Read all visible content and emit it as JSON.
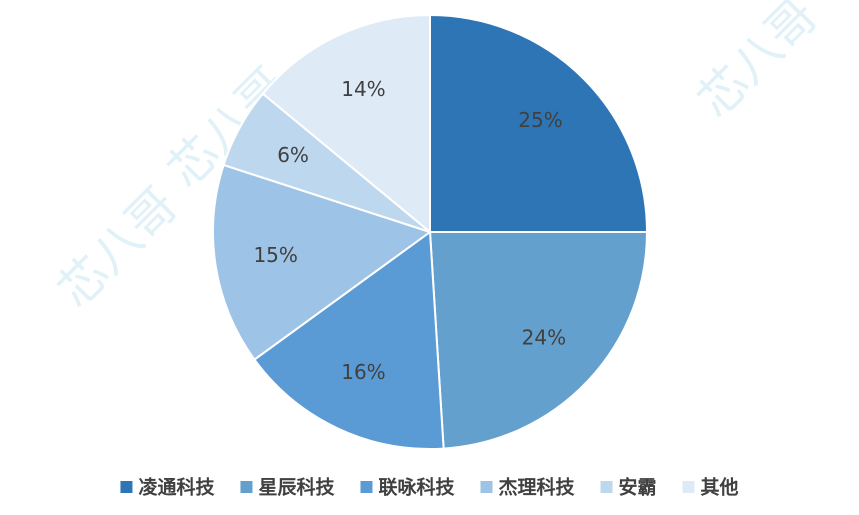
{
  "chart_data": {
    "type": "pie",
    "categories": [
      "凌通科技",
      "星辰科技",
      "联咏科技",
      "杰理科技",
      "安霸",
      "其他"
    ],
    "values": [
      25,
      24,
      16,
      15,
      6,
      14
    ],
    "value_labels": [
      "25%",
      "24%",
      "16%",
      "15%",
      "6%",
      "14%"
    ],
    "colors": [
      "#2e75b6",
      "#64a0cd",
      "#5b9bd5",
      "#9dc3e6",
      "#bdd7ee",
      "#deebf7"
    ],
    "legend": "bottom",
    "watermark": "芯八哥"
  }
}
